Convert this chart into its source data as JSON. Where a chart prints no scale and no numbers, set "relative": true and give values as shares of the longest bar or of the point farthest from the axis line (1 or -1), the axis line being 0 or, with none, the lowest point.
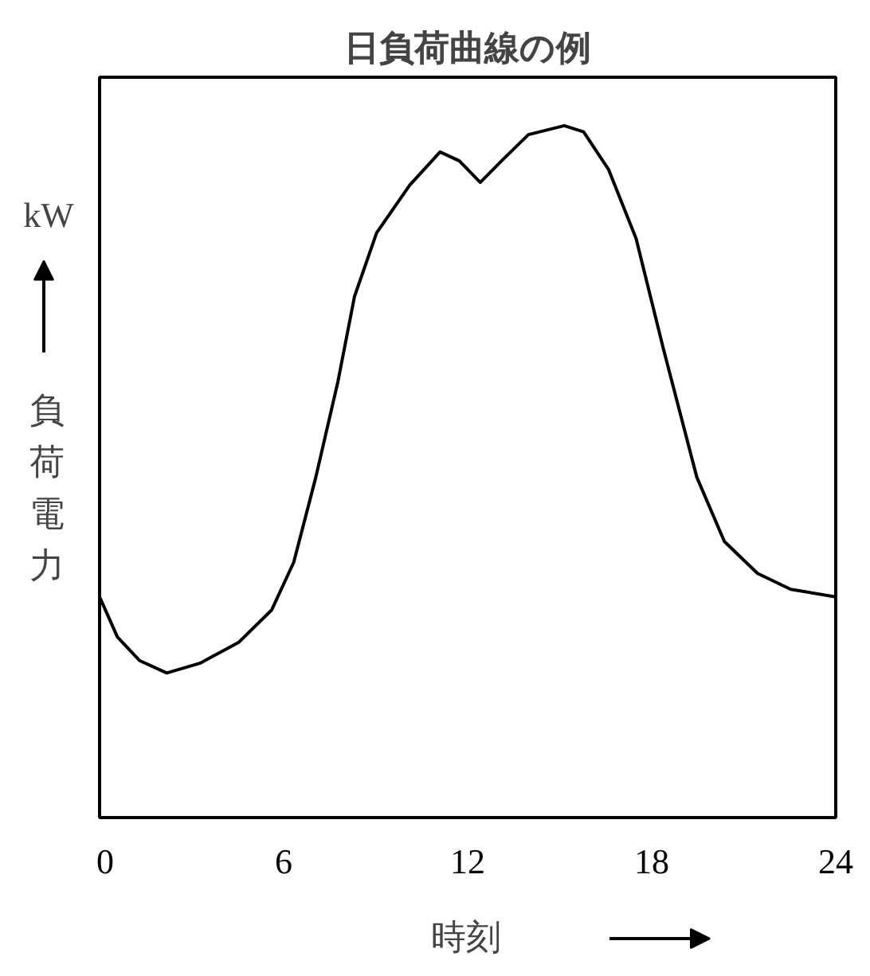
{
  "chart_data": {
    "type": "line",
    "title": "日負荷曲線の例",
    "xlabel": "時刻",
    "ylabel": "負荷電力",
    "annotations": [
      "kW"
    ],
    "relative": true,
    "xlim": [
      0,
      24
    ],
    "xticks": [
      0,
      6,
      12,
      18,
      24
    ],
    "tick_labels": "x",
    "grid": false,
    "line_style": "solid",
    "marker": "none",
    "series": [
      {
        "color": "#000000",
        "x": [
          0,
          0.58,
          1.3,
          2.19,
          3.27,
          4.53,
          5.61,
          6.33,
          7.05,
          7.77,
          8.31,
          9.03,
          10.11,
          11.1,
          11.73,
          12.41,
          13.17,
          13.98,
          15.15,
          15.78,
          16.59,
          17.49,
          18.39,
          19.47,
          20.37,
          21.45,
          22.53,
          24
        ],
        "values": [
          0.319,
          0.261,
          0.227,
          0.209,
          0.223,
          0.253,
          0.3,
          0.369,
          0.492,
          0.63,
          0.753,
          0.845,
          0.914,
          0.962,
          0.949,
          0.918,
          0.952,
          0.987,
          1.0,
          0.991,
          0.937,
          0.837,
          0.676,
          0.492,
          0.399,
          0.353,
          0.33,
          0.319
        ]
      }
    ]
  }
}
